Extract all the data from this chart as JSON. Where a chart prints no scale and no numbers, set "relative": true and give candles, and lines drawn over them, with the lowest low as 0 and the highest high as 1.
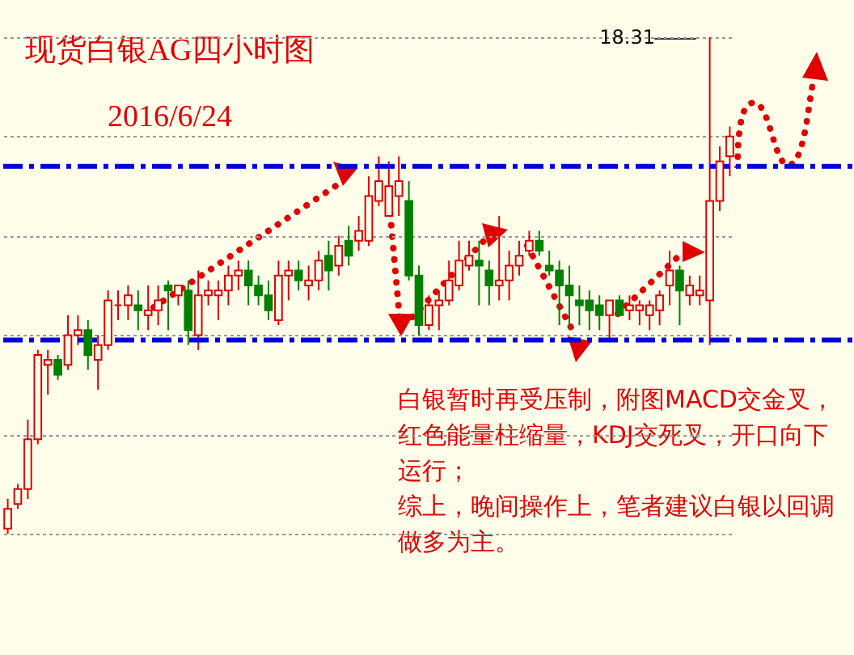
{
  "chart_data": {
    "type": "candlestick",
    "title": "现货白银AG四小时图",
    "subtitle": "2016/6/24",
    "relative": true,
    "grid": "y",
    "categories": [
      null,
      null,
      null,
      null,
      null,
      null,
      null,
      null,
      null,
      null,
      null,
      null,
      null,
      null,
      null,
      null,
      null,
      null,
      null,
      null,
      null,
      null,
      null,
      null,
      null,
      null,
      null,
      null,
      null,
      null,
      null,
      null,
      null,
      null,
      null,
      null,
      null,
      null,
      null,
      null,
      null,
      null,
      null,
      null,
      null,
      null,
      null,
      null,
      null,
      null,
      null,
      null,
      null,
      null,
      null,
      null,
      null,
      null,
      null,
      null,
      null,
      null,
      null,
      null,
      null,
      null,
      null,
      null,
      null,
      null,
      null,
      null,
      null
    ],
    "ohlc": [
      [
        0.01,
        0.07,
        0,
        0.05
      ],
      [
        0.06,
        0.1,
        0.05,
        0.09
      ],
      [
        0.09,
        0.23,
        0.07,
        0.19
      ],
      [
        0.19,
        0.37,
        0.18,
        0.36
      ],
      [
        0.34,
        0.37,
        0.28,
        0.35
      ],
      [
        0.35,
        0.36,
        0.31,
        0.32
      ],
      [
        0.34,
        0.44,
        0.33,
        0.4
      ],
      [
        0.4,
        0.44,
        0.38,
        0.41
      ],
      [
        0.41,
        0.43,
        0.33,
        0.36
      ],
      [
        0.35,
        0.4,
        0.29,
        0.38
      ],
      [
        0.38,
        0.49,
        0.37,
        0.47
      ],
      [
        0.46,
        0.49,
        0.43,
        0.46
      ],
      [
        0.46,
        0.5,
        0.43,
        0.48
      ],
      [
        0.46,
        0.49,
        0.41,
        0.45
      ],
      [
        0.44,
        0.5,
        0.41,
        0.45
      ],
      [
        0.45,
        0.5,
        0.42,
        0.47
      ],
      [
        0.5,
        0.51,
        0.41,
        0.49
      ],
      [
        0.48,
        0.5,
        0.46,
        0.5
      ],
      [
        0.49,
        0.51,
        0.38,
        0.41
      ],
      [
        0.4,
        0.53,
        0.37,
        0.48
      ],
      [
        0.48,
        0.51,
        0.46,
        0.49
      ],
      [
        0.48,
        0.51,
        0.43,
        0.49
      ],
      [
        0.49,
        0.54,
        0.46,
        0.52
      ],
      [
        0.52,
        0.55,
        0.49,
        0.53
      ],
      [
        0.53,
        0.55,
        0.46,
        0.5
      ],
      [
        0.5,
        0.52,
        0.46,
        0.48
      ],
      [
        0.48,
        0.51,
        0.43,
        0.45
      ],
      [
        0.43,
        0.55,
        0.42,
        0.52
      ],
      [
        0.52,
        0.55,
        0.47,
        0.53
      ],
      [
        0.53,
        0.55,
        0.49,
        0.51
      ],
      [
        0.5,
        0.54,
        0.47,
        0.51
      ],
      [
        0.51,
        0.57,
        0.49,
        0.55
      ],
      [
        0.56,
        0.59,
        0.49,
        0.53
      ],
      [
        0.54,
        0.6,
        0.52,
        0.58
      ],
      [
        0.59,
        0.62,
        0.54,
        0.56
      ],
      [
        0.59,
        0.64,
        0.57,
        0.61
      ],
      [
        0.59,
        0.72,
        0.58,
        0.68
      ],
      [
        0.67,
        0.76,
        0.66,
        0.71
      ],
      [
        0.64,
        0.75,
        0.64,
        0.7
      ],
      [
        0.68,
        0.76,
        0.64,
        0.71
      ],
      [
        0.67,
        0.71,
        0.51,
        0.52
      ],
      [
        0.52,
        0.54,
        0.4,
        0.42
      ],
      [
        0.42,
        0.48,
        0.41,
        0.46
      ],
      [
        0.46,
        0.49,
        0.41,
        0.47
      ],
      [
        0.47,
        0.55,
        0.46,
        0.51
      ],
      [
        0.5,
        0.59,
        0.49,
        0.55
      ],
      [
        0.54,
        0.59,
        0.53,
        0.56
      ],
      [
        0.55,
        0.59,
        0.46,
        0.54
      ],
      [
        0.53,
        0.55,
        0.46,
        0.5
      ],
      [
        0.5,
        0.64,
        0.47,
        0.51
      ],
      [
        0.51,
        0.57,
        0.47,
        0.54
      ],
      [
        0.54,
        0.59,
        0.52,
        0.56
      ],
      [
        0.57,
        0.61,
        0.56,
        0.59
      ],
      [
        0.59,
        0.61,
        0.56,
        0.57
      ],
      [
        0.54,
        0.57,
        0.52,
        0.53
      ],
      [
        0.53,
        0.55,
        0.42,
        0.5
      ],
      [
        0.5,
        0.54,
        0.41,
        0.48
      ],
      [
        0.47,
        0.5,
        0.42,
        0.46
      ],
      [
        0.47,
        0.49,
        0.41,
        0.45
      ],
      [
        0.46,
        0.48,
        0.41,
        0.44
      ],
      [
        0.44,
        0.47,
        0.39,
        0.47
      ],
      [
        0.47,
        0.48,
        0.44,
        0.44
      ],
      [
        0.45,
        0.48,
        0.43,
        0.46
      ],
      [
        0.45,
        0.47,
        0.42,
        0.46
      ],
      [
        0.44,
        0.47,
        0.41,
        0.46
      ],
      [
        0.45,
        0.49,
        0.42,
        0.48
      ],
      [
        0.5,
        0.57,
        0.46,
        0.53
      ],
      [
        0.53,
        0.54,
        0.42,
        0.49
      ],
      [
        0.48,
        0.52,
        0.46,
        0.5
      ],
      [
        0.48,
        0.52,
        0.46,
        0.49
      ],
      [
        0.47,
        1,
        0.38,
        0.67
      ],
      [
        0.67,
        0.78,
        0.65,
        0.75
      ],
      [
        0.76,
        0.82,
        0.72,
        0.8
      ]
    ],
    "ref_lines": [
      {
        "axis": "y",
        "value": 0.74,
        "color": "#0000dd",
        "line_style": "dashed"
      },
      {
        "axis": "y",
        "value": 0.39,
        "color": "#0000dd",
        "line_style": "dashed"
      }
    ],
    "annotations": [
      "18.31",
      "白银暂时再受压制，附图MACD交金叉，红色能量柱缩量，KDJ交死叉，开口向下运行；",
      "综上，晚间操作上，笔者建议白银以回调做多为主。"
    ]
  }
}
